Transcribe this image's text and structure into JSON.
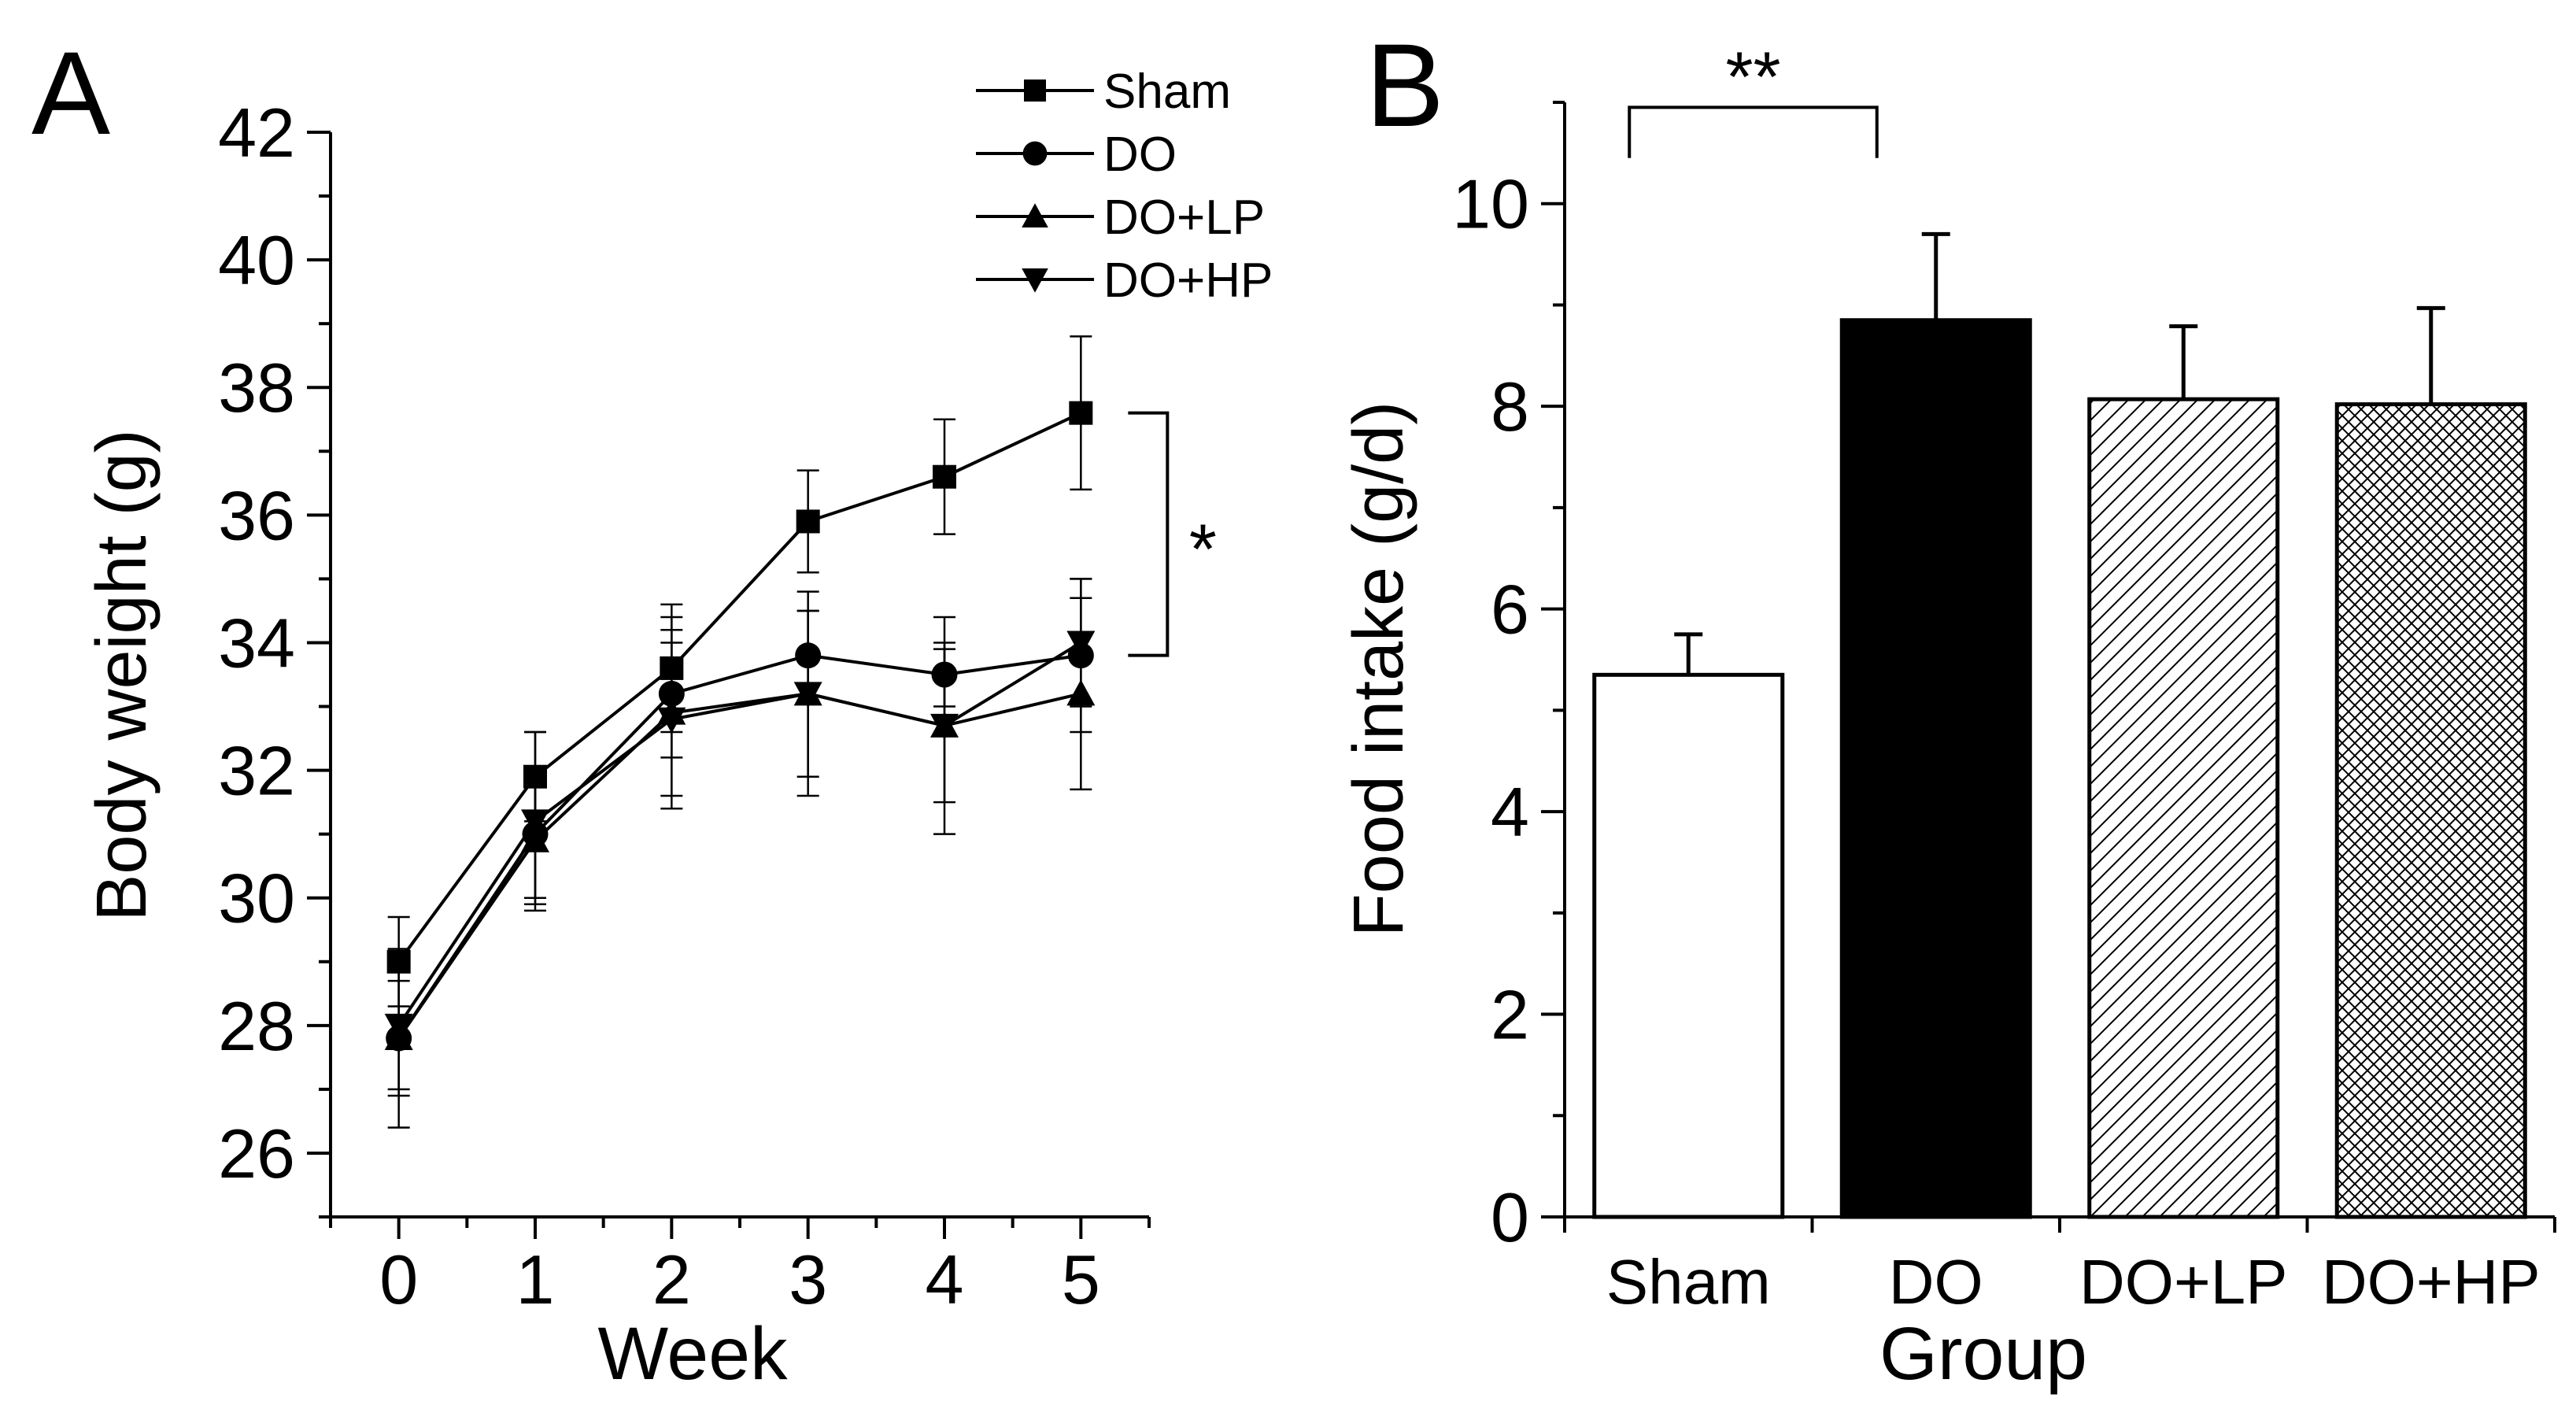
{
  "chart_data": [
    {
      "panel_label": "A",
      "type": "line",
      "xlabel": "Week",
      "ylabel": "Body weight (g)",
      "xlim": [
        -0.5,
        5.5
      ],
      "ylim": [
        25,
        42
      ],
      "x_ticks": [
        0,
        1,
        2,
        3,
        4,
        5
      ],
      "y_ticks": [
        26,
        28,
        30,
        32,
        34,
        36,
        38,
        40,
        42
      ],
      "x": [
        0,
        1,
        2,
        3,
        4,
        5
      ],
      "series": [
        {
          "name": "Sham",
          "marker": "square",
          "values": [
            29.0,
            31.9,
            33.6,
            35.9,
            36.6,
            37.6
          ],
          "errors": [
            0.7,
            0.7,
            1.0,
            0.8,
            0.9,
            1.2
          ]
        },
        {
          "name": "DO",
          "marker": "circle",
          "values": [
            27.8,
            31.0,
            33.2,
            33.8,
            33.5,
            33.8
          ],
          "errors": [
            0.9,
            1.0,
            1.0,
            0.7,
            0.5,
            1.2
          ]
        },
        {
          "name": "DO+LP",
          "marker": "triangle-up",
          "values": [
            27.8,
            30.9,
            32.9,
            33.2,
            32.7,
            33.2
          ],
          "errors": [
            1.4,
            1.0,
            1.5,
            1.6,
            1.7,
            1.5
          ]
        },
        {
          "name": "DO+HP",
          "marker": "triangle-down",
          "values": [
            28.0,
            31.2,
            32.8,
            33.2,
            32.7,
            34.0
          ],
          "errors": [
            1.0,
            1.4,
            1.2,
            1.3,
            1.2,
            1.0
          ]
        }
      ],
      "significance": {
        "label": "*",
        "between": [
          "Sham",
          "DO"
        ],
        "at_x": 5
      },
      "legend": {
        "position": "top-right"
      }
    },
    {
      "panel_label": "B",
      "type": "bar",
      "xlabel": "Group",
      "ylabel": "Food intake (g/d)",
      "ylim": [
        0,
        11
      ],
      "y_ticks": [
        0,
        2,
        4,
        6,
        8,
        10
      ],
      "categories": [
        "Sham",
        "DO",
        "DO+LP",
        "DO+HP"
      ],
      "values": [
        5.35,
        8.85,
        8.07,
        8.02
      ],
      "errors": [
        0.4,
        0.85,
        0.72,
        0.95
      ],
      "fills": [
        "white",
        "black",
        "diagonal-hatch",
        "crosshatch"
      ],
      "significance": {
        "label": "**",
        "between": [
          "Sham",
          "DO"
        ]
      }
    }
  ]
}
